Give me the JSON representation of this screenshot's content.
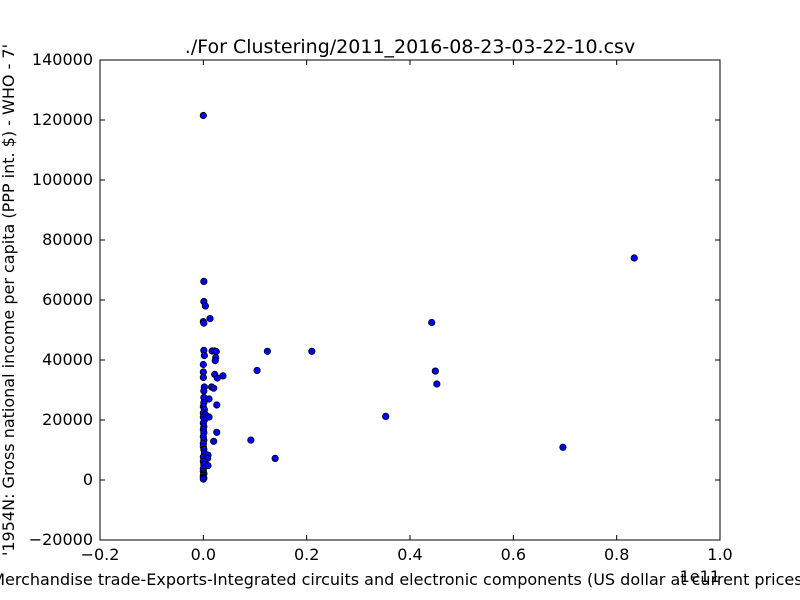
{
  "chart_data": {
    "type": "scatter",
    "title": "./For Clustering/2011_2016-08-23-03-22-10.csv",
    "xlabel": "Merchandise trade-Exports-Integrated circuits and electronic components (US dollar at current prices)",
    "ylabel": "'1954N: Gross national income per capita (PPP int. $) - WHO - 7'",
    "x_offset_label": "1e11",
    "xlim": [
      -0.2,
      1.0
    ],
    "ylim": [
      -20000,
      140000
    ],
    "xticks": [
      -0.2,
      0.0,
      0.2,
      0.4,
      0.6,
      0.8,
      1.0
    ],
    "xtick_labels": [
      "−0.2",
      "0.0",
      "0.2",
      "0.4",
      "0.6",
      "0.8",
      "1.0"
    ],
    "yticks": [
      -20000,
      0,
      20000,
      40000,
      60000,
      80000,
      100000,
      120000,
      140000
    ],
    "ytick_labels": [
      "−20000",
      "0",
      "20000",
      "40000",
      "60000",
      "80000",
      "100000",
      "120000",
      "140000"
    ],
    "grid": false,
    "marker_color": "#0000ff",
    "marker_edge_color": "#000000",
    "points": [
      {
        "x": 0.0,
        "y": 121500
      },
      {
        "x": 0.001,
        "y": 66200
      },
      {
        "x": 0.001,
        "y": 59500
      },
      {
        "x": 0.004,
        "y": 58000
      },
      {
        "x": 0.0,
        "y": 52800
      },
      {
        "x": 0.001,
        "y": 52300
      },
      {
        "x": 0.013,
        "y": 53800
      },
      {
        "x": 0.001,
        "y": 43200
      },
      {
        "x": 0.017,
        "y": 43000
      },
      {
        "x": 0.022,
        "y": 43000
      },
      {
        "x": 0.025,
        "y": 42800
      },
      {
        "x": 0.002,
        "y": 41500
      },
      {
        "x": 0.024,
        "y": 40800
      },
      {
        "x": 0.023,
        "y": 39800
      },
      {
        "x": 0.0,
        "y": 38500
      },
      {
        "x": 0.0,
        "y": 36000
      },
      {
        "x": 0.022,
        "y": 35200
      },
      {
        "x": 0.038,
        "y": 34700
      },
      {
        "x": 0.027,
        "y": 34000
      },
      {
        "x": 0.0,
        "y": 34200
      },
      {
        "x": 0.002,
        "y": 31000
      },
      {
        "x": 0.016,
        "y": 31000
      },
      {
        "x": 0.02,
        "y": 30600
      },
      {
        "x": 0.001,
        "y": 29700
      },
      {
        "x": 0.001,
        "y": 27500
      },
      {
        "x": 0.011,
        "y": 27000
      },
      {
        "x": 0.001,
        "y": 25800
      },
      {
        "x": 0.0,
        "y": 24500
      },
      {
        "x": 0.026,
        "y": 25000
      },
      {
        "x": 0.002,
        "y": 23500
      },
      {
        "x": 0.0,
        "y": 22300
      },
      {
        "x": 0.004,
        "y": 21800
      },
      {
        "x": 0.0,
        "y": 21000
      },
      {
        "x": 0.011,
        "y": 21000
      },
      {
        "x": 0.002,
        "y": 20000
      },
      {
        "x": 0.0,
        "y": 19000
      },
      {
        "x": 0.001,
        "y": 17800
      },
      {
        "x": 0.0,
        "y": 16800
      },
      {
        "x": 0.001,
        "y": 15800
      },
      {
        "x": 0.026,
        "y": 15900
      },
      {
        "x": 0.0,
        "y": 14500
      },
      {
        "x": 0.001,
        "y": 13300
      },
      {
        "x": 0.02,
        "y": 12900
      },
      {
        "x": 0.0,
        "y": 12200
      },
      {
        "x": 0.0,
        "y": 11200
      },
      {
        "x": 0.001,
        "y": 10200
      },
      {
        "x": 0.002,
        "y": 9000
      },
      {
        "x": 0.009,
        "y": 8300
      },
      {
        "x": 0.0,
        "y": 7700
      },
      {
        "x": 0.008,
        "y": 7200
      },
      {
        "x": 0.0,
        "y": 6200
      },
      {
        "x": 0.001,
        "y": 5200
      },
      {
        "x": 0.009,
        "y": 4800
      },
      {
        "x": 0.0,
        "y": 3800
      },
      {
        "x": 0.0,
        "y": 2900
      },
      {
        "x": 0.001,
        "y": 2100
      },
      {
        "x": 0.0,
        "y": 1500
      },
      {
        "x": 0.0,
        "y": 900
      },
      {
        "x": 0.001,
        "y": 600
      },
      {
        "x": 0.0,
        "y": 300
      },
      {
        "x": 0.092,
        "y": 13300
      },
      {
        "x": 0.104,
        "y": 36500
      },
      {
        "x": 0.124,
        "y": 42900
      },
      {
        "x": 0.139,
        "y": 7200
      },
      {
        "x": 0.21,
        "y": 42900
      },
      {
        "x": 0.353,
        "y": 21200
      },
      {
        "x": 0.442,
        "y": 52500
      },
      {
        "x": 0.449,
        "y": 36300
      },
      {
        "x": 0.452,
        "y": 32000
      },
      {
        "x": 0.696,
        "y": 10900
      },
      {
        "x": 0.834,
        "y": 74000
      }
    ]
  }
}
